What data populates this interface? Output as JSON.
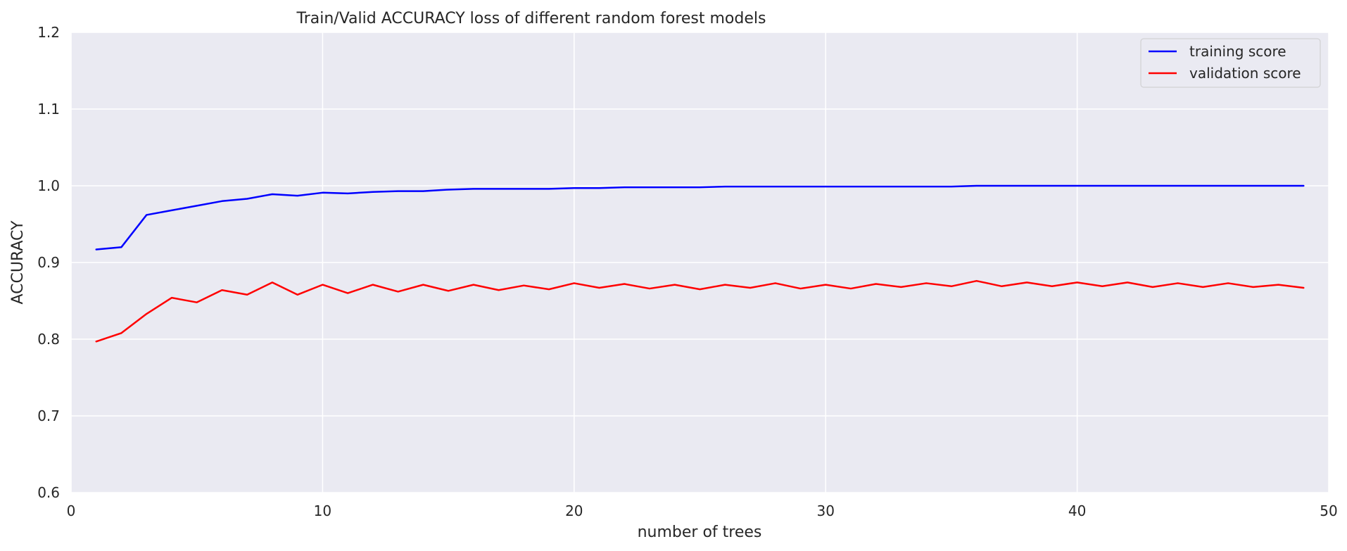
{
  "chart_data": {
    "type": "line",
    "title": "Train/Valid ACCURACY loss of different random forest models",
    "xlabel": "number of trees",
    "ylabel": "ACCURACY",
    "xlim": [
      0,
      50
    ],
    "ylim": [
      0.6,
      1.2
    ],
    "xticks": [
      0,
      10,
      20,
      30,
      40,
      50
    ],
    "yticks": [
      0.6,
      0.7,
      0.8,
      0.9,
      1.0,
      1.1,
      1.2
    ],
    "xtick_labels": [
      "0",
      "10",
      "20",
      "30",
      "40",
      "50"
    ],
    "ytick_labels": [
      "0.6",
      "0.7",
      "0.8",
      "0.9",
      "1.0",
      "1.1",
      "1.2"
    ],
    "grid": true,
    "legend_position": "top-right",
    "x": [
      1,
      2,
      3,
      4,
      5,
      6,
      7,
      8,
      9,
      10,
      11,
      12,
      13,
      14,
      15,
      16,
      17,
      18,
      19,
      20,
      21,
      22,
      23,
      24,
      25,
      26,
      27,
      28,
      29,
      30,
      31,
      32,
      33,
      34,
      35,
      36,
      37,
      38,
      39,
      40,
      41,
      42,
      43,
      44,
      45,
      46,
      47,
      48,
      49
    ],
    "series": [
      {
        "name": "training score",
        "color": "#0000ff",
        "values": [
          0.917,
          0.92,
          0.962,
          0.968,
          0.974,
          0.98,
          0.983,
          0.989,
          0.987,
          0.991,
          0.99,
          0.992,
          0.993,
          0.993,
          0.995,
          0.996,
          0.996,
          0.996,
          0.996,
          0.997,
          0.997,
          0.998,
          0.998,
          0.998,
          0.998,
          0.999,
          0.999,
          0.999,
          0.999,
          0.999,
          0.999,
          0.999,
          0.999,
          0.999,
          0.999,
          1.0,
          1.0,
          1.0,
          1.0,
          1.0,
          1.0,
          1.0,
          1.0,
          1.0,
          1.0,
          1.0,
          1.0,
          1.0,
          1.0
        ]
      },
      {
        "name": "validation score",
        "color": "#ff0000",
        "values": [
          0.797,
          0.808,
          0.833,
          0.854,
          0.848,
          0.864,
          0.858,
          0.874,
          0.858,
          0.871,
          0.86,
          0.871,
          0.862,
          0.871,
          0.863,
          0.871,
          0.864,
          0.87,
          0.865,
          0.873,
          0.867,
          0.872,
          0.866,
          0.871,
          0.865,
          0.871,
          0.867,
          0.873,
          0.866,
          0.871,
          0.866,
          0.872,
          0.868,
          0.873,
          0.869,
          0.876,
          0.869,
          0.874,
          0.869,
          0.874,
          0.869,
          0.874,
          0.868,
          0.873,
          0.868,
          0.873,
          0.868,
          0.871,
          0.867
        ]
      }
    ]
  }
}
